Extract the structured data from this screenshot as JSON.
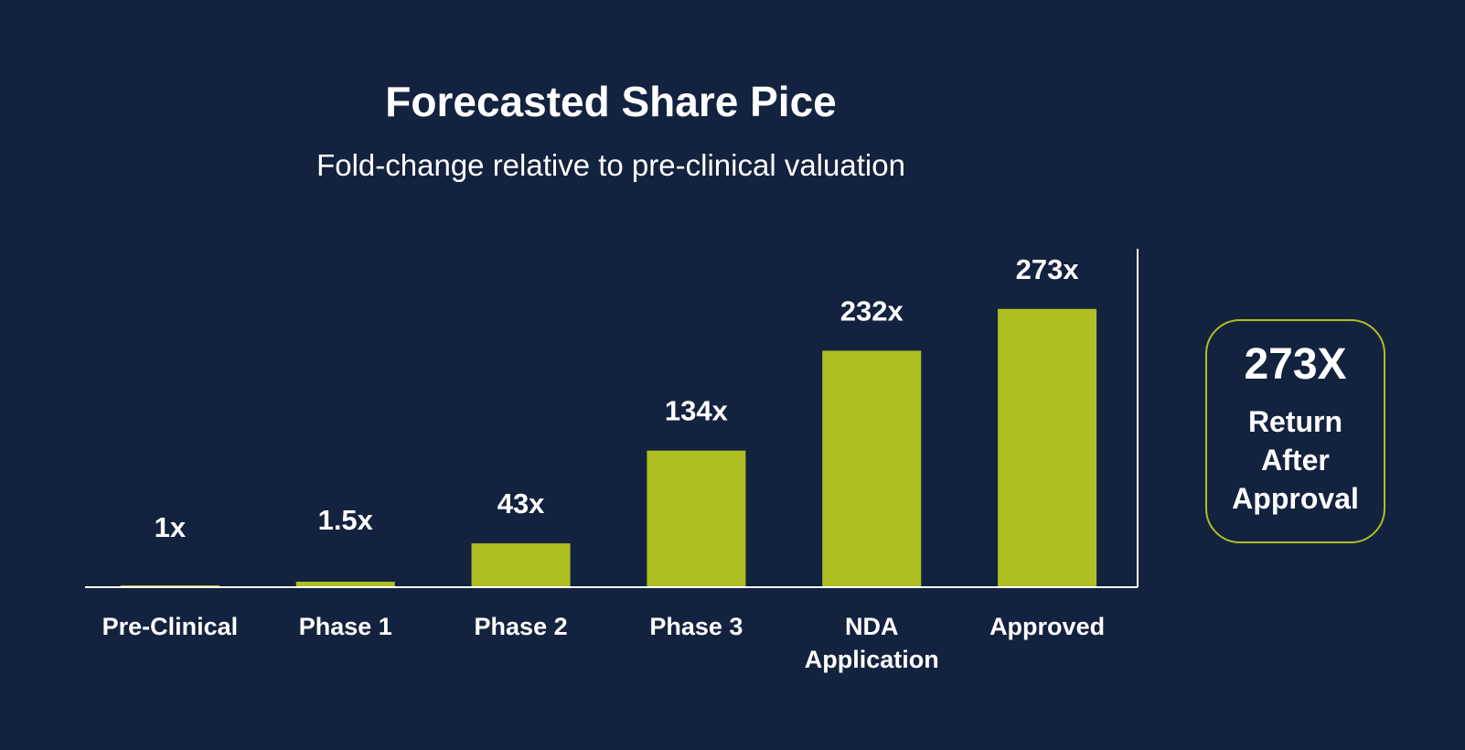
{
  "chart_data": {
    "type": "bar",
    "title": "Forecasted Share Pice",
    "subtitle": "Fold-change relative to pre-clinical valuation",
    "categories": [
      [
        "Pre-Clinical"
      ],
      [
        "Phase 1"
      ],
      [
        "Phase 2"
      ],
      [
        "Phase 3"
      ],
      [
        "NDA",
        "Application"
      ],
      [
        "Approved"
      ]
    ],
    "values": [
      1,
      1.5,
      43,
      134,
      232,
      273
    ],
    "data_labels": [
      "1x",
      "1.5x",
      "43x",
      "134x",
      "232x",
      "273x"
    ],
    "ylim": [
      0,
      332
    ],
    "grid": false,
    "bar_color": "#aebf22",
    "background_color": "#13233f"
  },
  "callout": {
    "value": "273X",
    "lines": [
      "Return",
      "After",
      "Approval"
    ],
    "border_color": "#aebf22"
  }
}
